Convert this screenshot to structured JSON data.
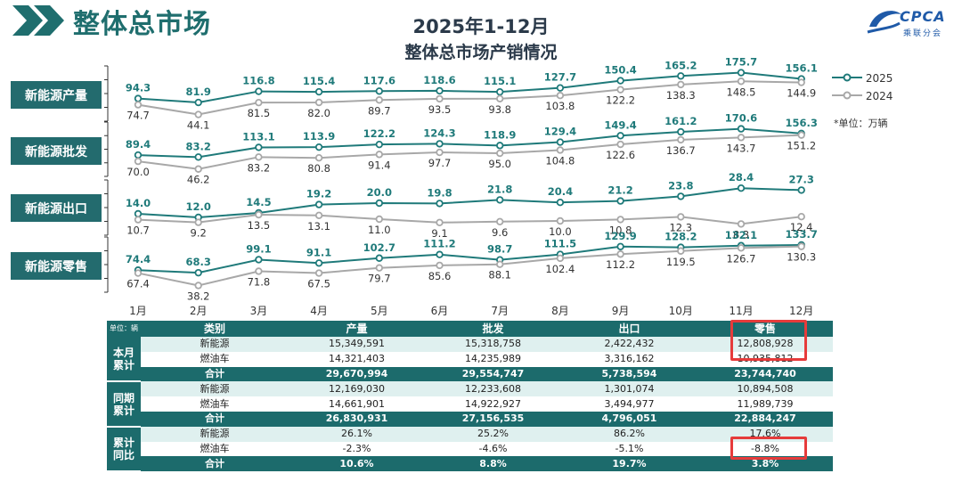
{
  "page_title": "整体总市场",
  "logo": {
    "text": "CPCA",
    "sub": "乘联分会"
  },
  "chart_data": {
    "type": "line",
    "title": "2025年1-12月",
    "subtitle": "整体总市场产销情况",
    "categories": [
      "1月",
      "2月",
      "3月",
      "4月",
      "5月",
      "6月",
      "7月",
      "8月",
      "9月",
      "10月",
      "11月",
      "12月"
    ],
    "legend": [
      "2025",
      "2024"
    ],
    "legend_position": "top-right",
    "unit_note": "*单位：万辆",
    "colors": {
      "2025": "#1f7a7a",
      "2024": "#a8a8a8"
    },
    "panels": [
      {
        "label": "新能源产量",
        "series": [
          {
            "name": "2025",
            "values": [
              94.3,
              81.9,
              116.8,
              115.4,
              117.6,
              118.6,
              115.1,
              127.7,
              150.4,
              165.2,
              175.7,
              156.1
            ]
          },
          {
            "name": "2024",
            "values": [
              74.7,
              44.1,
              81.5,
              82.0,
              89.7,
              93.5,
              93.8,
              103.8,
              122.2,
              138.3,
              148.5,
              144.9
            ]
          }
        ]
      },
      {
        "label": "新能源批发",
        "series": [
          {
            "name": "2025",
            "values": [
              89.4,
              83.2,
              113.1,
              113.9,
              122.2,
              124.3,
              118.9,
              129.4,
              149.4,
              161.2,
              170.6,
              156.3
            ]
          },
          {
            "name": "2024",
            "values": [
              70.0,
              46.2,
              83.2,
              80.8,
              91.4,
              97.7,
              95.0,
              104.8,
              122.6,
              136.7,
              143.7,
              151.2
            ]
          }
        ]
      },
      {
        "label": "新能源出口",
        "series": [
          {
            "name": "2025",
            "values": [
              14.0,
              12.0,
              14.5,
              19.2,
              20.0,
              19.8,
              21.8,
              20.4,
              21.2,
              23.8,
              28.4,
              27.3
            ]
          },
          {
            "name": "2024",
            "values": [
              10.7,
              9.2,
              13.5,
              13.1,
              11.0,
              9.1,
              9.6,
              10.0,
              10.8,
              12.3,
              8.3,
              12.4
            ]
          }
        ]
      },
      {
        "label": "新能源零售",
        "series": [
          {
            "name": "2025",
            "values": [
              74.4,
              68.3,
              99.1,
              91.1,
              102.7,
              111.2,
              98.7,
              111.5,
              129.9,
              128.2,
              132.1,
              133.7
            ]
          },
          {
            "name": "2024",
            "values": [
              67.4,
              38.2,
              71.8,
              67.5,
              79.7,
              85.6,
              88.1,
              102.4,
              112.2,
              119.5,
              126.7,
              130.3
            ]
          }
        ]
      }
    ]
  },
  "table": {
    "unit": "单位：辆",
    "headers": [
      "类别",
      "产量",
      "批发",
      "出口",
      "零售"
    ],
    "groups": [
      {
        "label": "本月累计",
        "rows": [
          [
            "新能源",
            "15,349,591",
            "15,318,758",
            "2,422,432",
            "12,808,928"
          ],
          [
            "燃油车",
            "14,321,403",
            "14,235,989",
            "3,316,162",
            "10,935,812"
          ],
          [
            "合计",
            "29,670,994",
            "29,554,747",
            "5,738,594",
            "23,744,740"
          ]
        ]
      },
      {
        "label": "同期累计",
        "rows": [
          [
            "新能源",
            "12,169,030",
            "12,233,608",
            "1,301,074",
            "10,894,508"
          ],
          [
            "燃油车",
            "14,661,901",
            "14,922,927",
            "3,494,977",
            "11,989,739"
          ],
          [
            "合计",
            "26,830,931",
            "27,156,535",
            "4,796,051",
            "22,884,247"
          ]
        ]
      },
      {
        "label": "累计同比",
        "rows": [
          [
            "新能源",
            "26.1%",
            "25.2%",
            "86.2%",
            "17.6%"
          ],
          [
            "燃油车",
            "-2.3%",
            "-4.6%",
            "-5.1%",
            "-8.8%"
          ],
          [
            "合计",
            "10.6%",
            "8.8%",
            "19.7%",
            "3.8%"
          ]
        ]
      }
    ]
  }
}
